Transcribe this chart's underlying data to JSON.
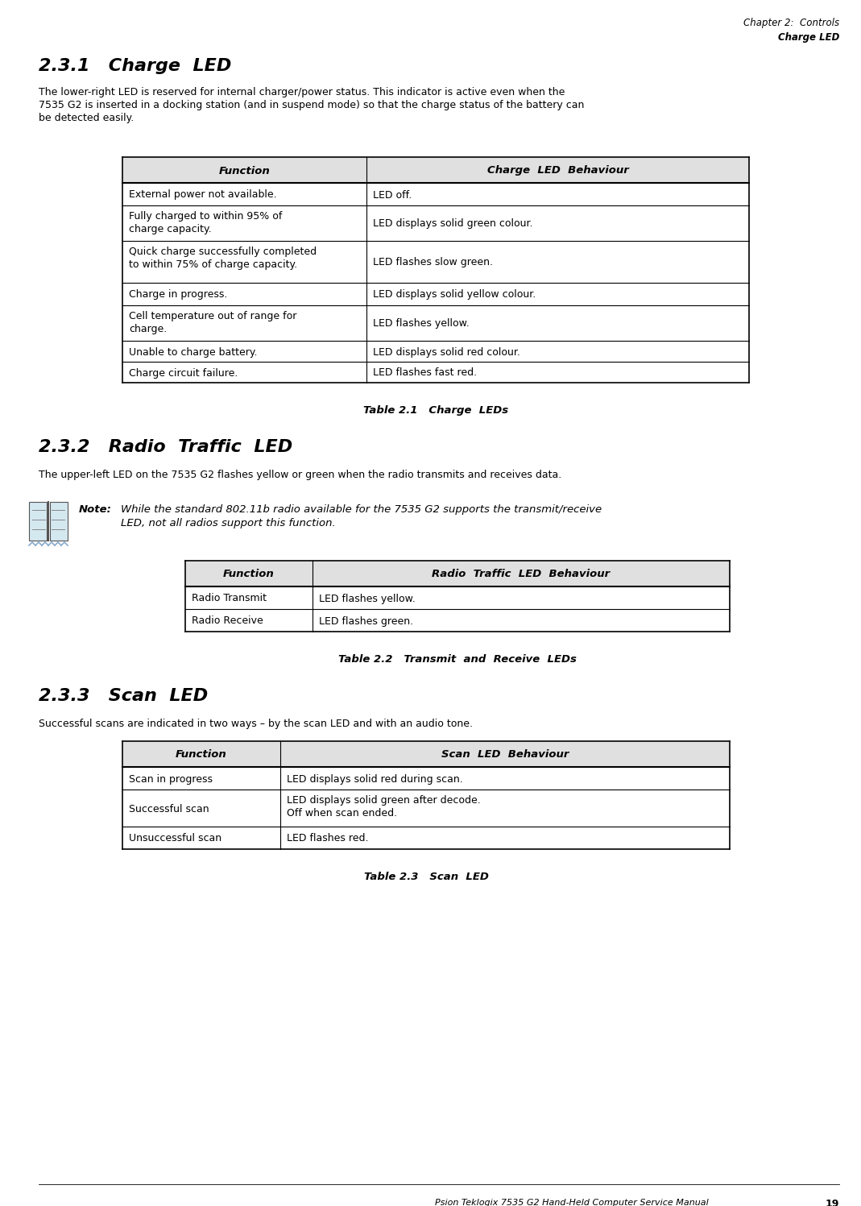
{
  "header_line1": "Chapter 2:  Controls",
  "header_line2": "Charge LED",
  "footer_text": "Psion Teklogix 7535 G2 Hand-Held Computer Service Manual",
  "footer_page": "19",
  "section_231_title": "2.3.1   Charge  LED",
  "section_231_body_lines": [
    "The lower-right LED is reserved for internal charger/power status. This indicator is active even when the",
    "7535 G2 is inserted in a docking station (and in suspend mode) so that the charge status of the battery can",
    "be detected easily."
  ],
  "table1_header": [
    "Function",
    "Charge  LED  Behaviour"
  ],
  "table1_rows": [
    [
      "External power not available.",
      "LED off."
    ],
    [
      "Fully charged to within 95% of\ncharge capacity.",
      "LED displays solid green colour."
    ],
    [
      "Quick charge successfully completed\nto within 75% of charge capacity.",
      "LED flashes slow green."
    ],
    [
      "Charge in progress.",
      "LED displays solid yellow colour."
    ],
    [
      "Cell temperature out of range for\ncharge.",
      "LED flashes yellow."
    ],
    [
      "Unable to charge battery.",
      "LED displays solid red colour."
    ],
    [
      "Charge circuit failure.",
      "LED flashes fast red."
    ]
  ],
  "table1_caption": "Table 2.1   Charge  LEDs",
  "section_232_title": "2.3.2   Radio  Traffic  LED",
  "section_232_body": "The upper-left LED on the 7535 G2 flashes yellow or green when the radio transmits and receives data.",
  "note_label": "Note:",
  "note_text_lines": [
    "While the standard 802.11b radio available for the 7535 G2 supports the transmit/receive",
    "LED, not all radios support this function."
  ],
  "table2_header": [
    "Function",
    "Radio  Traffic  LED  Behaviour"
  ],
  "table2_rows": [
    [
      "Radio Transmit",
      "LED flashes yellow."
    ],
    [
      "Radio Receive",
      "LED flashes green."
    ]
  ],
  "table2_caption": "Table 2.2   Transmit  and  Receive  LEDs",
  "section_233_title": "2.3.3   Scan  LED",
  "section_233_body": "Successful scans are indicated in two ways – by the scan LED and with an audio tone.",
  "table3_header": [
    "Function",
    "Scan  LED  Behaviour"
  ],
  "table3_rows": [
    [
      "Scan in progress",
      "LED displays solid red during scan."
    ],
    [
      "Successful scan",
      "LED displays solid green after decode.\nOff when scan ended."
    ],
    [
      "Unsuccessful scan",
      "LED flashes red."
    ]
  ],
  "table3_caption": "Table 2.3   Scan  LED",
  "bg_color": "#ffffff",
  "text_color": "#000000"
}
